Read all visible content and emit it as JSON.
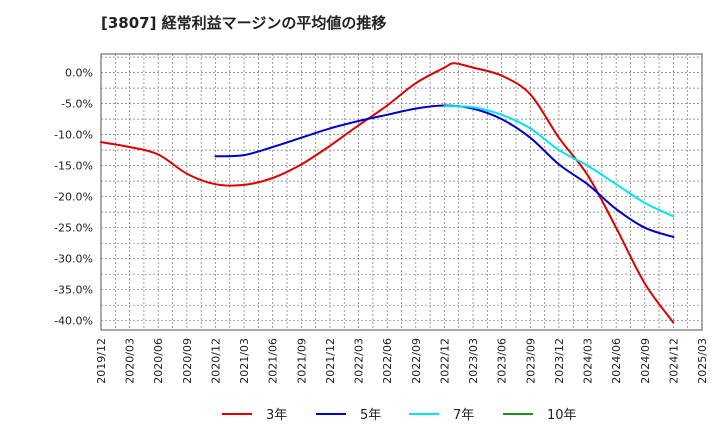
{
  "chart_data": {
    "type": "line",
    "title": "[3807]  経常利益マージンの平均値の推移",
    "xlabel": "",
    "ylabel": "",
    "x_ticks": [
      "2019/12",
      "2020/03",
      "2020/06",
      "2020/09",
      "2020/12",
      "2021/03",
      "2021/06",
      "2021/09",
      "2021/12",
      "2022/03",
      "2022/06",
      "2022/09",
      "2022/12",
      "2023/03",
      "2023/06",
      "2023/09",
      "2023/12",
      "2024/03",
      "2024/06",
      "2024/09",
      "2024/12",
      "2025/03"
    ],
    "y_ticks": [
      0,
      -5,
      -10,
      -15,
      -20,
      -25,
      -30,
      -35,
      -40
    ],
    "y_tick_labels": [
      "0.0%",
      "-5.0%",
      "-10.0%",
      "-15.0%",
      "-20.0%",
      "-25.0%",
      "-30.0%",
      "-35.0%",
      "-40.0%"
    ],
    "ylim": [
      -41.5,
      3
    ],
    "grid": true,
    "legend_position": "bottom",
    "series": [
      {
        "name": "3年",
        "color": "#dd0000",
        "points": [
          [
            "2019/12",
            -11.2
          ],
          [
            "2020/03",
            -12.0
          ],
          [
            "2020/06",
            -13.2
          ],
          [
            "2020/09",
            -16.3
          ],
          [
            "2020/12",
            -18.0
          ],
          [
            "2021/03",
            -18.1
          ],
          [
            "2021/06",
            -17.0
          ],
          [
            "2021/09",
            -14.8
          ],
          [
            "2021/12",
            -11.8
          ],
          [
            "2022/03",
            -8.5
          ],
          [
            "2022/06",
            -5.3
          ],
          [
            "2022/09",
            -1.7
          ],
          [
            "2022/12",
            0.8
          ],
          [
            "2023/01",
            1.5
          ],
          [
            "2023/03",
            0.8
          ],
          [
            "2023/06",
            -0.5
          ],
          [
            "2023/09",
            -3.5
          ],
          [
            "2023/12",
            -10.5
          ],
          [
            "2024/03",
            -16.5
          ],
          [
            "2024/06",
            -25.0
          ],
          [
            "2024/09",
            -34.0
          ],
          [
            "2024/12",
            -40.3
          ]
        ]
      },
      {
        "name": "5年",
        "color": "#0000cc",
        "points": [
          [
            "2020/12",
            -13.5
          ],
          [
            "2021/03",
            -13.3
          ],
          [
            "2021/06",
            -12.0
          ],
          [
            "2021/09",
            -10.5
          ],
          [
            "2021/12",
            -9.0
          ],
          [
            "2022/03",
            -7.8
          ],
          [
            "2022/06",
            -6.8
          ],
          [
            "2022/09",
            -5.8
          ],
          [
            "2022/12",
            -5.3
          ],
          [
            "2023/03",
            -5.8
          ],
          [
            "2023/06",
            -7.5
          ],
          [
            "2023/09",
            -10.5
          ],
          [
            "2023/12",
            -14.8
          ],
          [
            "2024/03",
            -18.0
          ],
          [
            "2024/06",
            -22.0
          ],
          [
            "2024/09",
            -25.0
          ],
          [
            "2024/12",
            -26.5
          ]
        ]
      },
      {
        "name": "7年",
        "color": "#00e5ee",
        "points": [
          [
            "2022/12",
            -5.4
          ],
          [
            "2023/03",
            -5.6
          ],
          [
            "2023/06",
            -6.8
          ],
          [
            "2023/09",
            -9.0
          ],
          [
            "2023/12",
            -12.5
          ],
          [
            "2024/03",
            -15.0
          ],
          [
            "2024/06",
            -18.0
          ],
          [
            "2024/09",
            -21.0
          ],
          [
            "2024/12",
            -23.2
          ]
        ]
      },
      {
        "name": "10年",
        "color": "#228b22",
        "points": []
      }
    ]
  }
}
